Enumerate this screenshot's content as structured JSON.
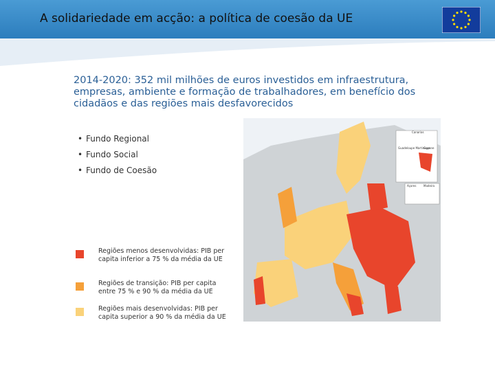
{
  "header": {
    "title": "A solidariedade em acção: a política de coesão da UE"
  },
  "subtitle": "2014-2020: 352 mil milhões de euros investidos em infraestrutura, empresas, ambiente e formação de trabalhadores, em benefício dos cidadãos e das regiões mais desfavorecidos",
  "bullets": [
    "Fundo Regional",
    "Fundo Social",
    "Fundo de Coesão"
  ],
  "legend": [
    {
      "color": "#e8452c",
      "label": "Regiões menos desenvolvidas: PIB per capita inferior a 75 % da média da UE"
    },
    {
      "color": "#f5a03a",
      "label": "Regiões de transição: PIB per capita entre 75 % e 90 % da média da UE"
    },
    {
      "color": "#fad27a",
      "label": "Regiões mais desenvolvidas: PIB per capita superior a 90 % da média da UE"
    }
  ],
  "map": {
    "insets": [
      "Canarias",
      "Guadeloupe Martinique",
      "Guyane",
      "Açores",
      "Madeira"
    ]
  }
}
